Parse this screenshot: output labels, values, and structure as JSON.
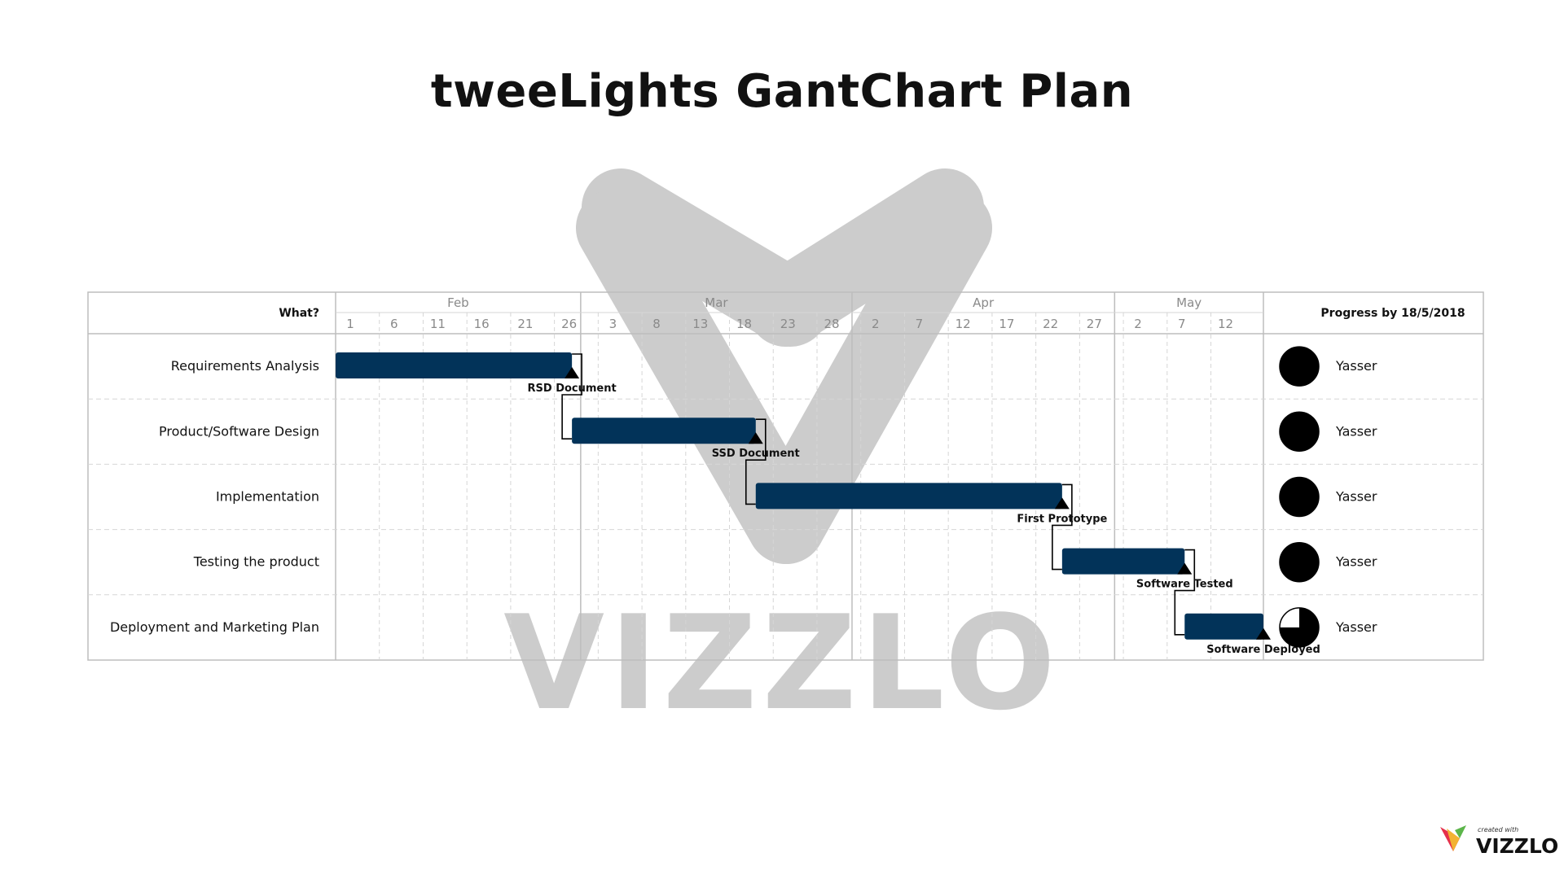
{
  "title": "tweeLights GantChart Plan",
  "watermark": {
    "text": "VIZZLO"
  },
  "brand_badge": {
    "small_text": "created with",
    "name": "VIZZLO"
  },
  "colors": {
    "bar": "#023359",
    "grid": "#d6d6d6",
    "frame": "#bdbdbd",
    "text": "#111111",
    "muted": "#8a8a8a"
  },
  "chart_data": {
    "type": "gantt",
    "title": "tweeLights GantChart Plan",
    "task_column_header": "What?",
    "progress_column_header": "Progress by 18/5/2018",
    "date_axis": {
      "start": "2018-02-01",
      "end": "2018-05-18",
      "months": [
        {
          "label": "Feb",
          "start": "2018-02-01"
        },
        {
          "label": "Mar",
          "start": "2018-03-01"
        },
        {
          "label": "Apr",
          "start": "2018-04-01"
        },
        {
          "label": "May",
          "start": "2018-05-01"
        }
      ],
      "ticks": [
        {
          "label": "1",
          "date": "2018-02-01"
        },
        {
          "label": "6",
          "date": "2018-02-06"
        },
        {
          "label": "11",
          "date": "2018-02-11"
        },
        {
          "label": "16",
          "date": "2018-02-16"
        },
        {
          "label": "21",
          "date": "2018-02-21"
        },
        {
          "label": "26",
          "date": "2018-02-26"
        },
        {
          "label": "3",
          "date": "2018-03-03"
        },
        {
          "label": "8",
          "date": "2018-03-08"
        },
        {
          "label": "13",
          "date": "2018-03-13"
        },
        {
          "label": "18",
          "date": "2018-03-18"
        },
        {
          "label": "23",
          "date": "2018-03-23"
        },
        {
          "label": "28",
          "date": "2018-03-28"
        },
        {
          "label": "2",
          "date": "2018-04-02"
        },
        {
          "label": "7",
          "date": "2018-04-07"
        },
        {
          "label": "12",
          "date": "2018-04-12"
        },
        {
          "label": "17",
          "date": "2018-04-17"
        },
        {
          "label": "22",
          "date": "2018-04-22"
        },
        {
          "label": "27",
          "date": "2018-04-27"
        },
        {
          "label": "2",
          "date": "2018-05-02"
        },
        {
          "label": "7",
          "date": "2018-05-07"
        },
        {
          "label": "12",
          "date": "2018-05-12"
        }
      ]
    },
    "tasks": [
      {
        "name": "Requirements Analysis",
        "start": "2018-02-01",
        "end": "2018-02-28",
        "milestone": "RSD Document",
        "owner": "Yasser",
        "progress": 1.0
      },
      {
        "name": "Product/Software Design",
        "start": "2018-02-28",
        "end": "2018-03-21",
        "milestone": "SSD Document",
        "owner": "Yasser",
        "progress": 1.0
      },
      {
        "name": "Implementation",
        "start": "2018-03-21",
        "end": "2018-04-25",
        "milestone": "First Prototype",
        "owner": "Yasser",
        "progress": 1.0
      },
      {
        "name": "Testing the product",
        "start": "2018-04-25",
        "end": "2018-05-09",
        "milestone": "Software Tested",
        "owner": "Yasser",
        "progress": 1.0
      },
      {
        "name": "Deployment and Marketing Plan",
        "start": "2018-05-09",
        "end": "2018-05-18",
        "milestone": "Software Deployed",
        "owner": "Yasser",
        "progress": 0.75
      }
    ]
  }
}
